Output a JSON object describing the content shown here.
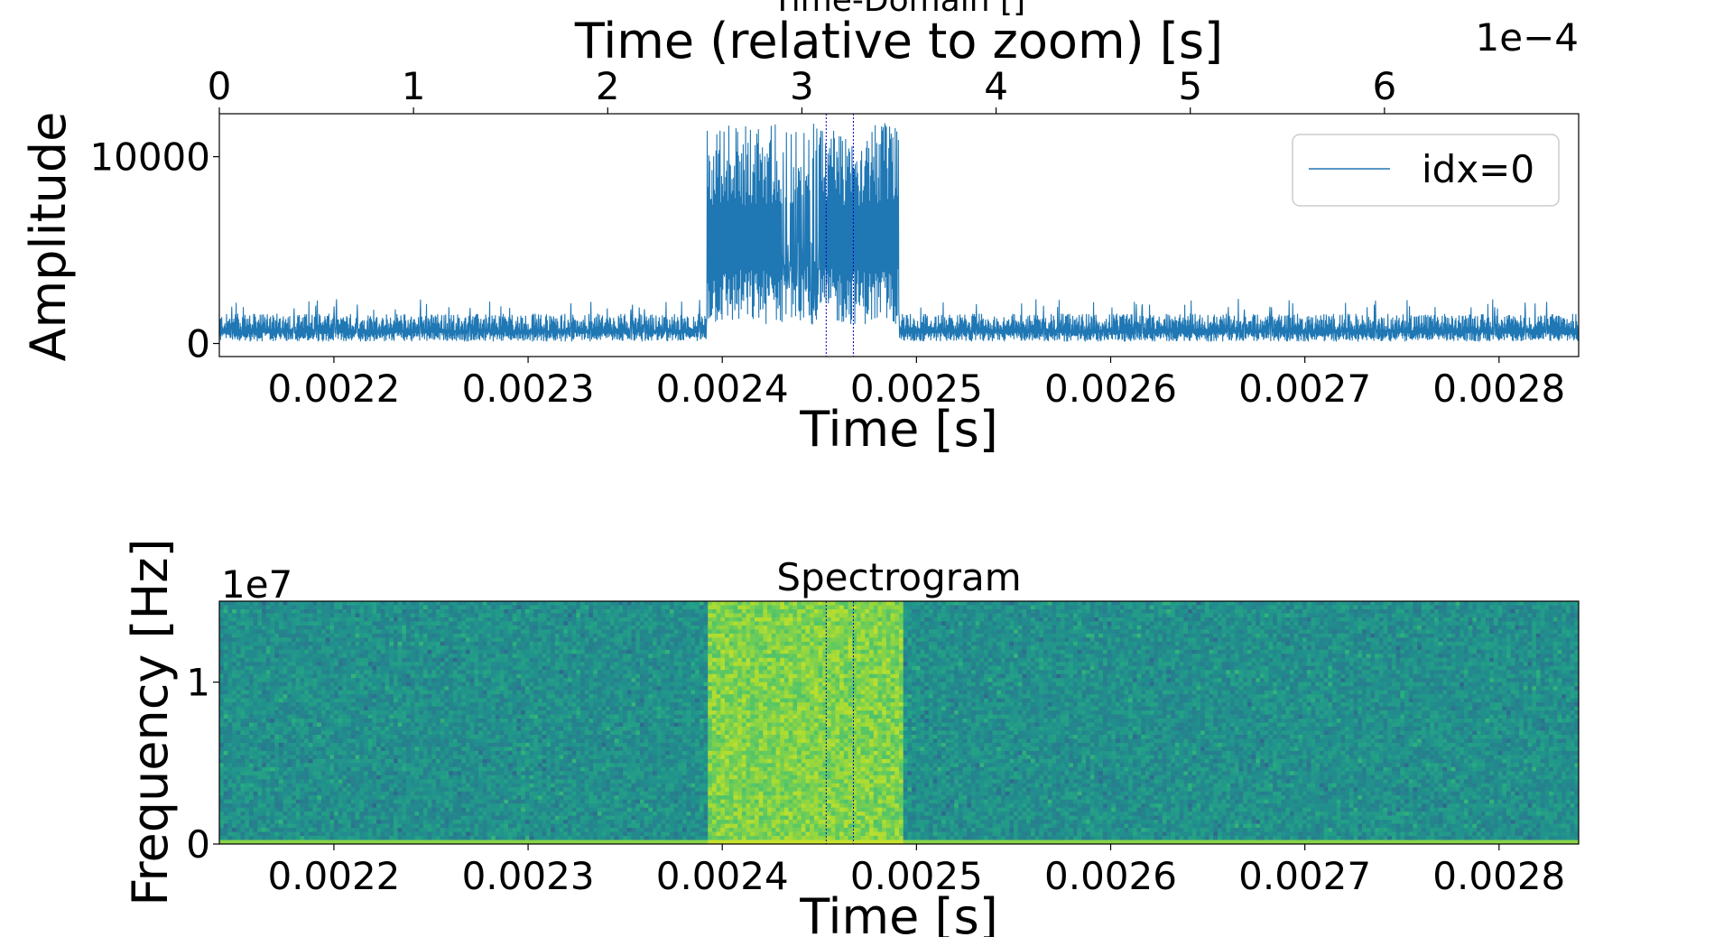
{
  "chart_data": [
    {
      "type": "line",
      "title": "Time-Domain []",
      "xlabel": "Time [s]",
      "ylabel": "Amplitude",
      "xlim": [
        0.002141,
        0.002841
      ],
      "ylim": [
        -700,
        12300
      ],
      "x_ticks": [
        "0.0022",
        "0.0023",
        "0.0024",
        "0.0025",
        "0.0026",
        "0.0027",
        "0.0028"
      ],
      "x_tick_values": [
        0.0022,
        0.0023,
        0.0024,
        0.0025,
        0.0026,
        0.0027,
        0.0028
      ],
      "y_ticks": [
        "0",
        "10000"
      ],
      "y_tick_values": [
        0,
        10000
      ],
      "secondary_x": {
        "label": "Time (relative to zoom) [s]",
        "offset_text": "1e−4",
        "ticks": [
          "0",
          "1",
          "2",
          "3",
          "4",
          "5",
          "6"
        ],
        "tick_values": [
          0,
          1,
          2,
          3,
          4,
          5,
          6
        ],
        "range": [
          0,
          7.0
        ]
      },
      "series": [
        {
          "name": "idx=0",
          "color": "#1f77b4",
          "description_values": {
            "noise_floor": [
              0,
              1800
            ],
            "burst_start": 0.002392,
            "burst_end": 0.002491,
            "burst_range": [
              1000,
              11800
            ]
          }
        }
      ],
      "markers": [
        0.0024535,
        0.0024675
      ],
      "marker_color": "#0000cc",
      "legend": "upper right",
      "grid": false
    },
    {
      "type": "heatmap",
      "title": "Spectrogram",
      "xlabel": "Time [s]",
      "ylabel": "Frequency [Hz]",
      "xlim": [
        0.002141,
        0.002841
      ],
      "ylim": [
        0,
        15000000
      ],
      "x_ticks": [
        "0.0022",
        "0.0023",
        "0.0024",
        "0.0025",
        "0.0026",
        "0.0027",
        "0.0028"
      ],
      "x_tick_values": [
        0.0022,
        0.0023,
        0.0024,
        0.0025,
        0.0026,
        0.0027,
        0.0028
      ],
      "y_ticks": [
        "0",
        "1"
      ],
      "y_tick_values": [
        0,
        10000000
      ],
      "y_offset_text": "1e7",
      "colormap": "viridis",
      "burst_start": 0.002392,
      "burst_end": 0.002494,
      "markers": [
        0.0024535,
        0.0024675
      ],
      "marker_color": "#0000cc"
    }
  ]
}
